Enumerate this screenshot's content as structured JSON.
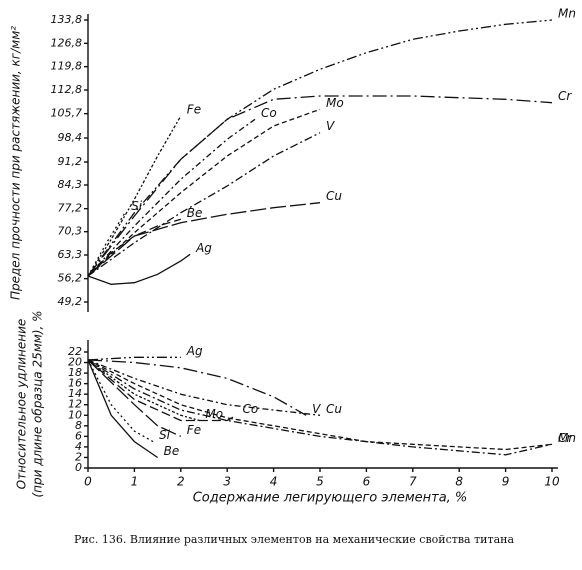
{
  "chart_data": [
    {
      "type": "line",
      "ylabel": "Предел прочности при растяжении, кг/мм²",
      "xlim": [
        0,
        10
      ],
      "ylim": [
        49.2,
        133.8
      ],
      "yticks": [
        {
          "value": 49.2,
          "label": "49,2"
        },
        {
          "value": 56.2,
          "label": "56,2"
        },
        {
          "value": 63.3,
          "label": "63,3"
        },
        {
          "value": 70.3,
          "label": "70,3"
        },
        {
          "value": 77.2,
          "label": "77,2"
        },
        {
          "value": 84.3,
          "label": "84,3"
        },
        {
          "value": 91.2,
          "label": "91,2"
        },
        {
          "value": 98.4,
          "label": "98,4"
        },
        {
          "value": 105.7,
          "label": "105,7"
        },
        {
          "value": 112.8,
          "label": "112,8"
        },
        {
          "value": 119.8,
          "label": "119,8"
        },
        {
          "value": 126.8,
          "label": "126,8"
        },
        {
          "value": 133.8,
          "label": "133,8"
        }
      ],
      "series": [
        {
          "name": "Mn",
          "color": "#111111",
          "x": [
            0,
            1,
            2,
            3,
            4,
            5,
            6,
            7,
            8,
            9,
            10
          ],
          "y": [
            57,
            76,
            92,
            104,
            113,
            119,
            124,
            128,
            130.5,
            132.5,
            133.8
          ]
        },
        {
          "name": "Cr",
          "color": "#111111",
          "x": [
            0,
            1,
            2,
            3,
            4,
            5,
            6,
            7,
            8,
            9,
            10
          ],
          "y": [
            57,
            75,
            92,
            104,
            110,
            111,
            111,
            111,
            110.5,
            110,
            109
          ]
        },
        {
          "name": "Co",
          "color": "#111111",
          "x": [
            0,
            1,
            2,
            3,
            3.6
          ],
          "y": [
            57,
            72,
            86,
            98,
            104
          ]
        },
        {
          "name": "Mo",
          "color": "#111111",
          "x": [
            0,
            1,
            2,
            3,
            4,
            5
          ],
          "y": [
            57,
            70,
            82,
            93,
            102,
            107
          ]
        },
        {
          "name": "V",
          "color": "#111111",
          "x": [
            0,
            1,
            2,
            3,
            4,
            5
          ],
          "y": [
            57,
            67,
            76,
            84,
            93,
            100
          ]
        },
        {
          "name": "Fe",
          "color": "#111111",
          "x": [
            0,
            0.5,
            1,
            1.5,
            2
          ],
          "y": [
            57,
            68,
            80,
            93,
            105
          ]
        },
        {
          "name": "Be",
          "color": "#111111",
          "x": [
            0,
            0.5,
            1,
            1.5,
            2
          ],
          "y": [
            57,
            64,
            69,
            72,
            74
          ]
        },
        {
          "name": "Cu",
          "color": "#111111",
          "x": [
            0,
            1,
            2,
            3,
            4,
            5
          ],
          "y": [
            57,
            69,
            73,
            75.5,
            77.5,
            79
          ]
        },
        {
          "name": "Si",
          "color": "#111111",
          "x": [
            0,
            0.4,
            0.8
          ],
          "y": [
            57,
            67,
            76
          ]
        },
        {
          "name": "Ag",
          "color": "#111111",
          "x": [
            0,
            0.5,
            1,
            1.5,
            2,
            2.2
          ],
          "y": [
            57,
            54.5,
            55,
            57.5,
            61.5,
            63.5
          ]
        }
      ]
    },
    {
      "type": "line",
      "ylabel": [
        "Относительное удлинение",
        "(при длине образца 25мм), %"
      ],
      "xlabel": "Содержание легирующего элемента, %",
      "xlim": [
        0,
        10
      ],
      "ylim": [
        0,
        22
      ],
      "xticks": [
        0,
        1,
        2,
        3,
        4,
        5,
        6,
        7,
        8,
        9,
        10
      ],
      "yticks": [
        0,
        2,
        4,
        6,
        8,
        10,
        12,
        14,
        16,
        18,
        20,
        22
      ],
      "series": [
        {
          "name": "Ag",
          "color": "#111111",
          "x": [
            0,
            1,
            2
          ],
          "y": [
            20.5,
            21,
            21
          ]
        },
        {
          "name": "V",
          "color": "#111111",
          "x": [
            0,
            1,
            2,
            3,
            4,
            4.7
          ],
          "y": [
            20.5,
            20,
            19,
            17,
            13.5,
            10
          ]
        },
        {
          "name": "Cu",
          "color": "#111111",
          "x": [
            0,
            1,
            2,
            3,
            4,
            5
          ],
          "y": [
            20.5,
            17,
            14,
            12,
            11,
            10
          ]
        },
        {
          "name": "Cr",
          "color": "#111111",
          "x": [
            0,
            1,
            2,
            3,
            4,
            5,
            6,
            7,
            8,
            9,
            10
          ],
          "y": [
            20.5,
            16,
            12,
            9.5,
            8,
            6.5,
            5,
            4.5,
            4,
            3.5,
            4.5
          ]
        },
        {
          "name": "Mn",
          "color": "#111111",
          "x": [
            0,
            1,
            2,
            3,
            5,
            7,
            9,
            10
          ],
          "y": [
            20.5,
            15,
            11,
            9,
            6,
            4,
            2.5,
            4.5
          ]
        },
        {
          "name": "Mo",
          "color": "#111111",
          "x": [
            0,
            1,
            2,
            2.4
          ],
          "y": [
            20.5,
            14,
            10,
            9
          ]
        },
        {
          "name": "Co",
          "color": "#111111",
          "x": [
            0,
            1,
            2,
            3,
            3.2
          ],
          "y": [
            20.5,
            13,
            9,
            9,
            10
          ]
        },
        {
          "name": "Fe",
          "color": "#111111",
          "x": [
            0,
            1,
            1.5,
            2
          ],
          "y": [
            20.5,
            12,
            8,
            6
          ]
        },
        {
          "name": "Si",
          "color": "#111111",
          "x": [
            0,
            0.5,
            1,
            1.4
          ],
          "y": [
            20.5,
            12,
            7,
            5
          ]
        },
        {
          "name": "Be",
          "color": "#111111",
          "x": [
            0,
            0.5,
            1,
            1.5
          ],
          "y": [
            20.5,
            10,
            5,
            2
          ]
        }
      ]
    }
  ],
  "caption": "Рис. 136. Влияние различных элементов на механические свойства титана"
}
